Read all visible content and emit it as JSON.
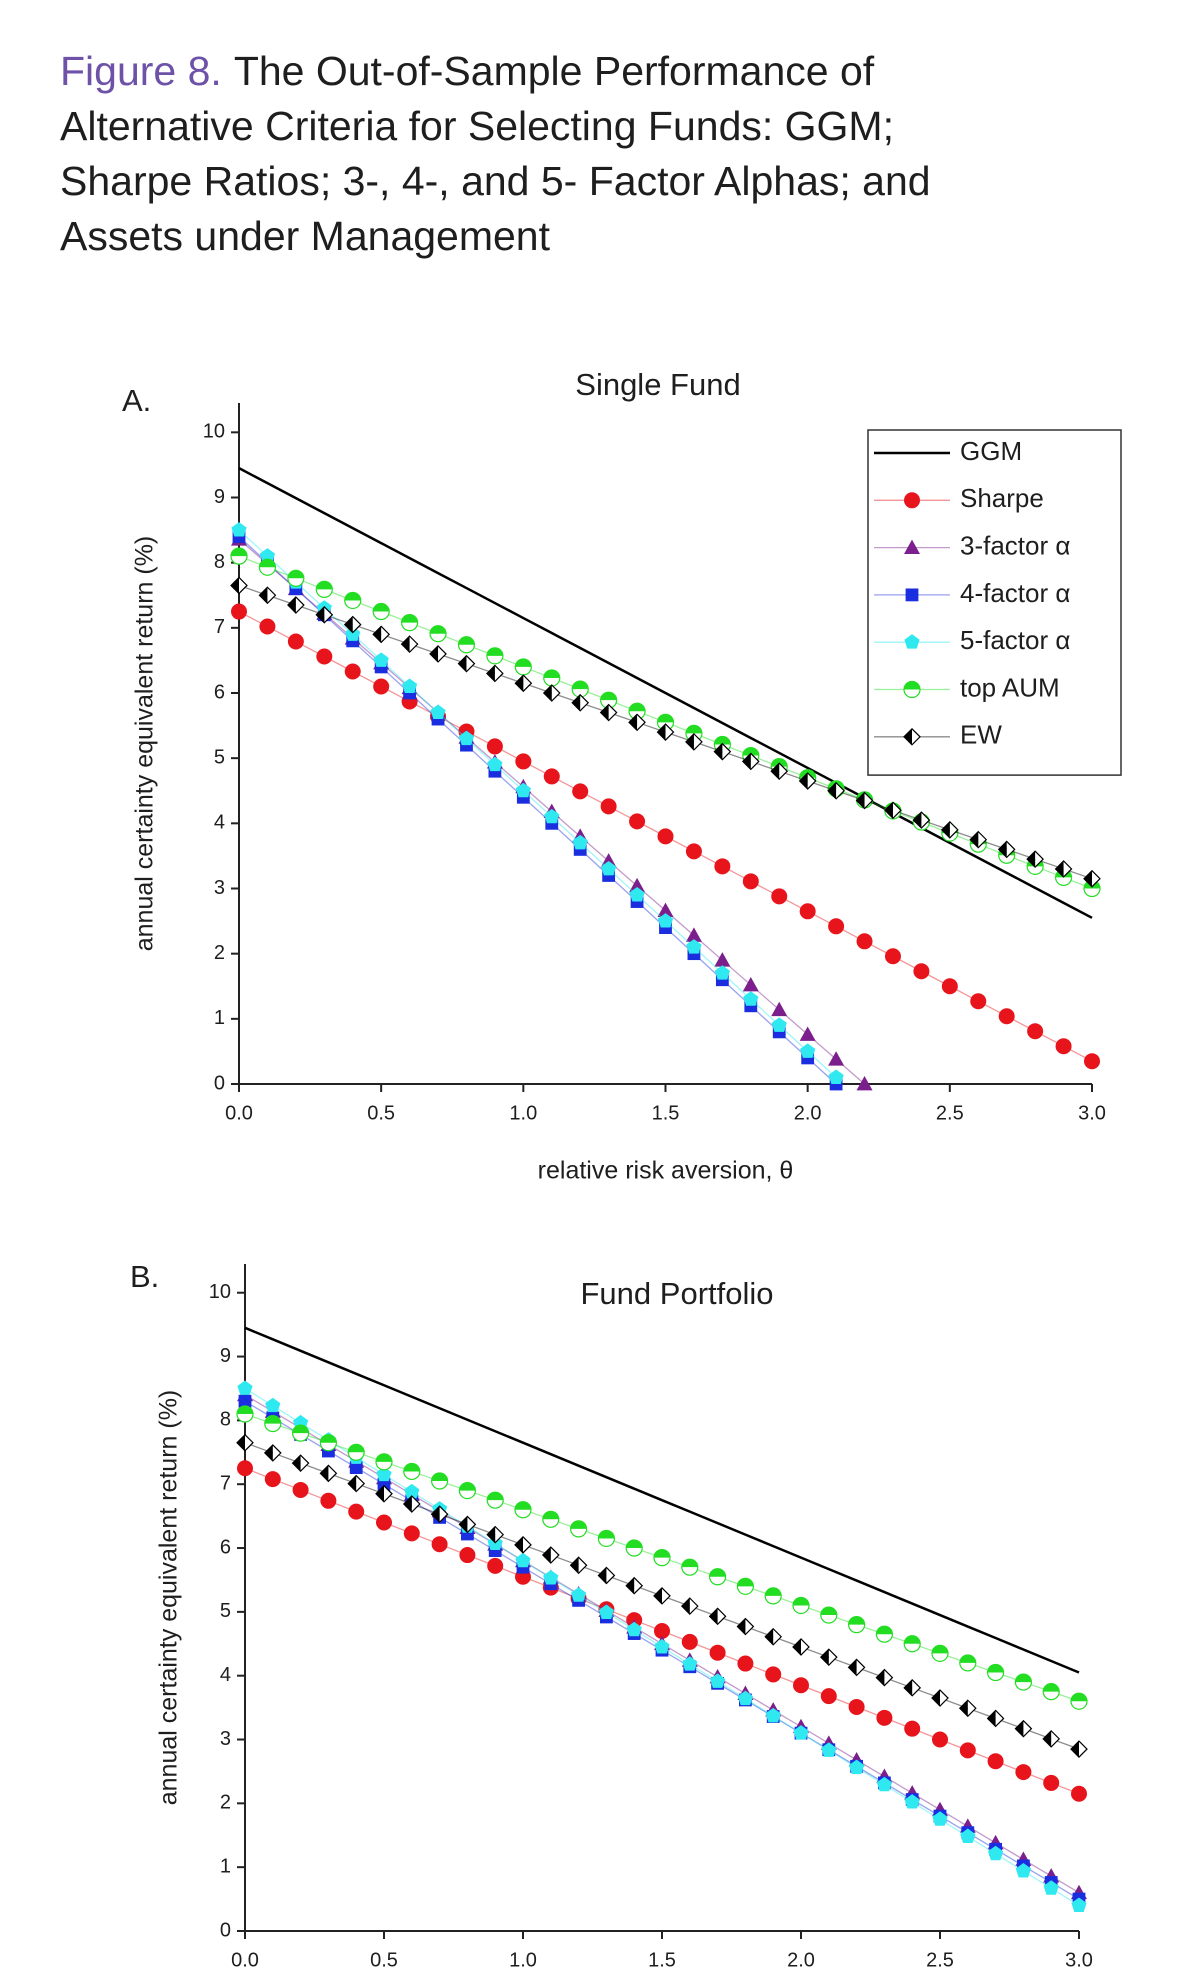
{
  "figure": {
    "label": "Figure 8.",
    "title_lines": [
      "The Out-of-Sample Performance of",
      "Alternative Criteria for Selecting Funds: GGM;",
      "Sharpe Ratios; 3-, 4-, and 5- Factor Alphas; and",
      "Assets under Management"
    ]
  },
  "chart_data": [
    {
      "type": "line",
      "panel": "A.",
      "title": "Single Fund",
      "xlabel": "relative risk aversion, θ",
      "ylabel": "annual certainty equivalent return (%)",
      "xlim": [
        0,
        3
      ],
      "ylim": [
        0,
        10.45
      ],
      "xticks": [
        {
          "value": 0,
          "label": "0.0"
        },
        0.5,
        {
          "value": 1,
          "label": "1.0"
        },
        1.5,
        {
          "value": 2,
          "label": "2.0"
        },
        2.5,
        {
          "value": 3,
          "label": "3.0"
        }
      ],
      "yticks": [
        0,
        1,
        2,
        3,
        4,
        5,
        6,
        7,
        8,
        9,
        10
      ],
      "legend": "upper right",
      "x": [
        0,
        0.1,
        0.2,
        0.3,
        0.4,
        0.5,
        0.6,
        0.7,
        0.8,
        0.9,
        1,
        1.1,
        1.2,
        1.3,
        1.4,
        1.5,
        1.6,
        1.7,
        1.8,
        1.9,
        2,
        2.1,
        2.2,
        2.3,
        2.4,
        2.5,
        2.6,
        2.7,
        2.8,
        2.9,
        3
      ],
      "series": [
        {
          "name": "GGM",
          "color": "#000000",
          "marker": "none",
          "values": [
            9.45,
            9.22,
            8.99,
            8.76,
            8.53,
            8.3,
            8.07,
            7.84,
            7.61,
            7.38,
            7.15,
            6.92,
            6.69,
            6.46,
            6.23,
            6.0,
            5.77,
            5.54,
            5.31,
            5.08,
            4.85,
            4.62,
            4.39,
            4.16,
            3.93,
            3.7,
            3.47,
            3.24,
            3.01,
            2.78,
            2.55
          ]
        },
        {
          "name": "Sharpe",
          "color": "#e8141b",
          "marker": "circle",
          "values": [
            7.25,
            7.02,
            6.79,
            6.56,
            6.33,
            6.1,
            5.87,
            5.64,
            5.41,
            5.18,
            4.95,
            4.72,
            4.49,
            4.26,
            4.03,
            3.8,
            3.57,
            3.34,
            3.11,
            2.88,
            2.65,
            2.42,
            2.19,
            1.96,
            1.73,
            1.5,
            1.27,
            1.04,
            0.81,
            0.58,
            0.35
          ]
        },
        {
          "name": "3-factor α",
          "color": "#7a1f8c",
          "marker": "triangle",
          "values": [
            8.36,
            7.98,
            7.6,
            7.22,
            6.84,
            6.46,
            6.08,
            5.7,
            5.32,
            4.94,
            4.56,
            4.18,
            3.8,
            3.42,
            3.04,
            2.66,
            2.28,
            1.9,
            1.52,
            1.14,
            0.76,
            0.38,
            0.0,
            null,
            null,
            null,
            null,
            null,
            null,
            null,
            null
          ]
        },
        {
          "name": "4-factor α",
          "color": "#1a2ee0",
          "marker": "square",
          "values": [
            8.4,
            8.0,
            7.6,
            7.2,
            6.8,
            6.4,
            6.0,
            5.6,
            5.2,
            4.8,
            4.4,
            4.0,
            3.6,
            3.2,
            2.8,
            2.4,
            2.0,
            1.6,
            1.2,
            0.8,
            0.4,
            0.0,
            null,
            null,
            null,
            null,
            null,
            null,
            null,
            null,
            null
          ]
        },
        {
          "name": "5-factor α",
          "color": "#2fe8f0",
          "marker": "pentagon",
          "values": [
            8.5,
            8.1,
            7.7,
            7.3,
            6.9,
            6.5,
            6.1,
            5.7,
            5.3,
            4.9,
            4.5,
            4.1,
            3.7,
            3.3,
            2.9,
            2.5,
            2.1,
            1.7,
            1.3,
            0.9,
            0.5,
            0.1,
            null,
            null,
            null,
            null,
            null,
            null,
            null,
            null,
            null
          ]
        },
        {
          "name": "top AUM",
          "color": "#22dd22",
          "marker": "circle-half",
          "values": [
            8.1,
            7.93,
            7.76,
            7.59,
            7.42,
            7.25,
            7.08,
            6.91,
            6.74,
            6.57,
            6.4,
            6.23,
            6.06,
            5.89,
            5.72,
            5.55,
            5.38,
            5.21,
            5.04,
            4.87,
            4.7,
            4.53,
            4.36,
            4.19,
            4.02,
            3.85,
            3.68,
            3.51,
            3.34,
            3.17,
            3.0
          ]
        },
        {
          "name": "EW",
          "color": "#000000",
          "marker": "diamond-half",
          "values": [
            7.65,
            7.5,
            7.35,
            7.2,
            7.05,
            6.9,
            6.75,
            6.6,
            6.45,
            6.3,
            6.15,
            6.0,
            5.85,
            5.7,
            5.55,
            5.4,
            5.25,
            5.1,
            4.95,
            4.8,
            4.65,
            4.5,
            4.35,
            4.2,
            4.05,
            3.9,
            3.75,
            3.6,
            3.45,
            3.3,
            3.15
          ]
        }
      ]
    },
    {
      "type": "line",
      "panel": "B.",
      "title": "Fund Portfolio",
      "ylabel": "annual certainty equivalent return (%)",
      "xlim": [
        0,
        3
      ],
      "ylim": [
        0,
        10.45
      ],
      "xticks": [
        {
          "value": 0,
          "label": "0.0"
        },
        0.5,
        {
          "value": 1,
          "label": "1.0"
        },
        1.5,
        {
          "value": 2,
          "label": "2.0"
        },
        2.5,
        {
          "value": 3,
          "label": "3.0"
        }
      ],
      "yticks": [
        0,
        1,
        2,
        3,
        4,
        5,
        6,
        7,
        8,
        9,
        10
      ],
      "x": [
        0,
        0.1,
        0.2,
        0.3,
        0.4,
        0.5,
        0.6,
        0.7,
        0.8,
        0.9,
        1,
        1.1,
        1.2,
        1.3,
        1.4,
        1.5,
        1.6,
        1.7,
        1.8,
        1.9,
        2,
        2.1,
        2.2,
        2.3,
        2.4,
        2.5,
        2.6,
        2.7,
        2.8,
        2.9,
        3
      ],
      "series": [
        {
          "name": "GGM",
          "color": "#000000",
          "marker": "none",
          "values": [
            9.45,
            9.27,
            9.09,
            8.91,
            8.73,
            8.55,
            8.37,
            8.19,
            8.01,
            7.83,
            7.65,
            7.47,
            7.29,
            7.11,
            6.93,
            6.75,
            6.57,
            6.39,
            6.21,
            6.03,
            5.85,
            5.67,
            5.49,
            5.31,
            5.13,
            4.95,
            4.77,
            4.59,
            4.41,
            4.23,
            4.05
          ]
        },
        {
          "name": "Sharpe",
          "color": "#e8141b",
          "marker": "circle",
          "values": [
            7.25,
            7.08,
            6.91,
            6.74,
            6.57,
            6.4,
            6.23,
            6.06,
            5.89,
            5.72,
            5.55,
            5.38,
            5.21,
            5.04,
            4.87,
            4.7,
            4.53,
            4.36,
            4.19,
            4.02,
            3.85,
            3.68,
            3.51,
            3.34,
            3.17,
            3.0,
            2.83,
            2.66,
            2.49,
            2.32,
            2.15
          ]
        },
        {
          "name": "3-factor α",
          "color": "#7a1f8c",
          "marker": "triangle",
          "values": [
            8.4,
            8.14,
            7.88,
            7.62,
            7.36,
            7.1,
            6.84,
            6.58,
            6.32,
            6.06,
            5.8,
            5.54,
            5.28,
            5.02,
            4.76,
            4.5,
            4.24,
            3.98,
            3.72,
            3.46,
            3.2,
            2.94,
            2.68,
            2.42,
            2.16,
            1.9,
            1.64,
            1.38,
            1.12,
            0.86,
            0.6
          ]
        },
        {
          "name": "4-factor α",
          "color": "#1a2ee0",
          "marker": "square",
          "values": [
            8.3,
            8.04,
            7.78,
            7.52,
            7.26,
            7.0,
            6.74,
            6.48,
            6.22,
            5.96,
            5.7,
            5.44,
            5.18,
            4.92,
            4.66,
            4.4,
            4.14,
            3.88,
            3.62,
            3.36,
            3.1,
            2.84,
            2.58,
            2.32,
            2.06,
            1.8,
            1.54,
            1.28,
            1.02,
            0.76,
            0.5
          ]
        },
        {
          "name": "5-factor α",
          "color": "#2fe8f0",
          "marker": "pentagon",
          "values": [
            8.5,
            8.23,
            7.96,
            7.69,
            7.42,
            7.15,
            6.88,
            6.61,
            6.34,
            6.07,
            5.8,
            5.53,
            5.26,
            4.99,
            4.72,
            4.45,
            4.18,
            3.91,
            3.64,
            3.37,
            3.1,
            2.83,
            2.56,
            2.29,
            2.02,
            1.75,
            1.48,
            1.21,
            0.94,
            0.67,
            0.4
          ]
        },
        {
          "name": "top AUM",
          "color": "#22dd22",
          "marker": "circle-half",
          "values": [
            8.1,
            7.95,
            7.8,
            7.65,
            7.5,
            7.35,
            7.2,
            7.05,
            6.9,
            6.75,
            6.6,
            6.45,
            6.3,
            6.15,
            6.0,
            5.85,
            5.7,
            5.55,
            5.4,
            5.25,
            5.1,
            4.95,
            4.8,
            4.65,
            4.5,
            4.35,
            4.2,
            4.05,
            3.9,
            3.75,
            3.6
          ]
        },
        {
          "name": "EW",
          "color": "#000000",
          "marker": "diamond-half",
          "values": [
            7.65,
            7.49,
            7.33,
            7.17,
            7.01,
            6.85,
            6.69,
            6.53,
            6.37,
            6.21,
            6.05,
            5.89,
            5.73,
            5.57,
            5.41,
            5.25,
            5.09,
            4.93,
            4.77,
            4.61,
            4.45,
            4.29,
            4.13,
            3.97,
            3.81,
            3.65,
            3.49,
            3.33,
            3.17,
            3.01,
            2.85
          ]
        }
      ]
    }
  ]
}
